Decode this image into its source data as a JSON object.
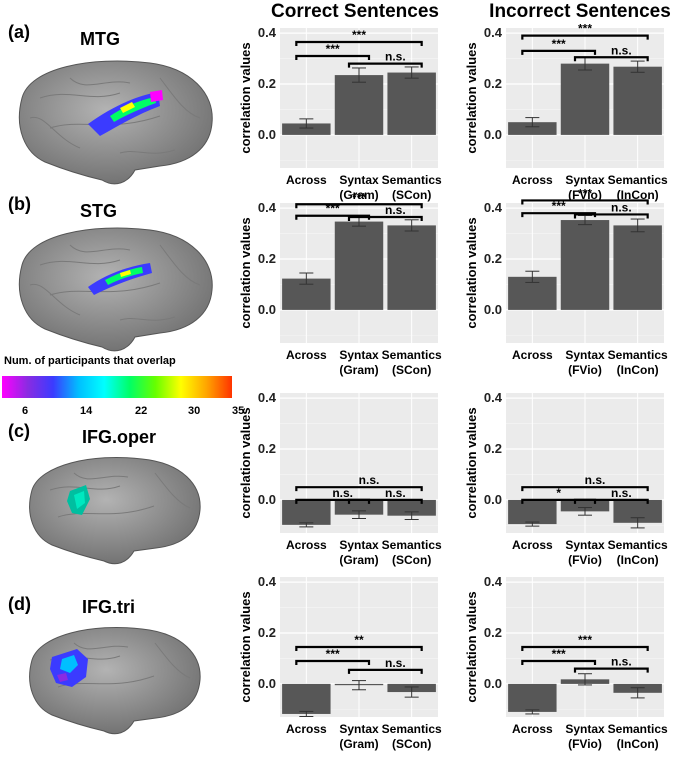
{
  "columns": [
    "Correct Sentences",
    "Incorrect Sentences"
  ],
  "colorbar": {
    "title": "Num. of participants that overlap",
    "ticks": [
      "6",
      "14",
      "22",
      "30",
      "35"
    ],
    "stops": [
      "#ff00ff",
      "#8a2be2",
      "#3b3bff",
      "#00bfff",
      "#00ffff",
      "#00ff66",
      "#66ff00",
      "#ffff00",
      "#ffa500",
      "#ff3300"
    ]
  },
  "rows": [
    {
      "letter": "(a)",
      "region": "MTG"
    },
    {
      "letter": "(b)",
      "region": "STG"
    },
    {
      "letter": "(c)",
      "region": "IFG.oper"
    },
    {
      "letter": "(d)",
      "region": "IFG.tri"
    }
  ],
  "chart_data": [
    {
      "type": "bar",
      "ylabel": "correlation values",
      "ylim": [
        -0.13,
        0.42
      ],
      "yticks": [
        "0.0",
        "0.2",
        "0.4"
      ],
      "categories": [
        [
          "Across",
          ""
        ],
        [
          "Syntax",
          "(Gram)"
        ],
        [
          "Semantics",
          "(SCon)"
        ]
      ],
      "values": [
        0.045,
        0.235,
        0.245
      ],
      "errors": [
        0.018,
        0.028,
        0.022
      ],
      "comparisons": [
        {
          "from": 0,
          "to": 1,
          "label": "***",
          "y": 0.31
        },
        {
          "from": 1,
          "to": 2,
          "label": "n.s.",
          "y": 0.28
        },
        {
          "from": 0,
          "to": 2,
          "label": "***",
          "y": 0.365
        }
      ]
    },
    {
      "type": "bar",
      "ylabel": "correlation values",
      "ylim": [
        -0.13,
        0.42
      ],
      "yticks": [
        "0.0",
        "0.2",
        "0.4"
      ],
      "categories": [
        [
          "Across",
          ""
        ],
        [
          "Syntax",
          "(FVio)"
        ],
        [
          "Semantics",
          "(InCon)"
        ]
      ],
      "values": [
        0.05,
        0.28,
        0.268
      ],
      "errors": [
        0.018,
        0.025,
        0.022
      ],
      "comparisons": [
        {
          "from": 0,
          "to": 1,
          "label": "***",
          "y": 0.33
        },
        {
          "from": 1,
          "to": 2,
          "label": "n.s.",
          "y": 0.305
        },
        {
          "from": 0,
          "to": 2,
          "label": "***",
          "y": 0.39
        }
      ]
    },
    {
      "type": "bar",
      "ylabel": "correlation values",
      "ylim": [
        -0.13,
        0.42
      ],
      "yticks": [
        "0.0",
        "0.2",
        "0.4"
      ],
      "categories": [
        [
          "Across",
          ""
        ],
        [
          "Syntax",
          "(Gram)"
        ],
        [
          "Semantics",
          "(SCon)"
        ]
      ],
      "values": [
        0.123,
        0.347,
        0.332
      ],
      "errors": [
        0.022,
        0.018,
        0.022
      ],
      "comparisons": [
        {
          "from": 0,
          "to": 1,
          "label": "***",
          "y": 0.37
        },
        {
          "from": 1,
          "to": 2,
          "label": "n.s.",
          "y": 0.365
        },
        {
          "from": 0,
          "to": 2,
          "label": "***",
          "y": 0.415
        }
      ]
    },
    {
      "type": "bar",
      "ylabel": "correlation values",
      "ylim": [
        -0.13,
        0.42
      ],
      "yticks": [
        "0.0",
        "0.2",
        "0.4"
      ],
      "categories": [
        [
          "Across",
          ""
        ],
        [
          "Syntax",
          "(FVio)"
        ],
        [
          "Semantics",
          "(InCon)"
        ]
      ],
      "values": [
        0.13,
        0.353,
        0.332
      ],
      "errors": [
        0.022,
        0.018,
        0.025
      ],
      "comparisons": [
        {
          "from": 0,
          "to": 1,
          "label": "***",
          "y": 0.38
        },
        {
          "from": 1,
          "to": 2,
          "label": "n.s.",
          "y": 0.375
        },
        {
          "from": 0,
          "to": 2,
          "label": "***",
          "y": 0.43
        }
      ]
    },
    {
      "type": "bar",
      "ylabel": "correlation values",
      "ylim": [
        -0.13,
        0.42
      ],
      "yticks": [
        "0.0",
        "0.2",
        "0.4"
      ],
      "categories": [
        [
          "Across",
          ""
        ],
        [
          "Syntax",
          "(Gram)"
        ],
        [
          "Semantics",
          "(SCon)"
        ]
      ],
      "values": [
        -0.098,
        -0.058,
        -0.062
      ],
      "errors": [
        0.008,
        0.015,
        0.015
      ],
      "comparisons": [
        {
          "from": 0,
          "to": 1,
          "label": "n.s.",
          "y": 0.0
        },
        {
          "from": 1,
          "to": 2,
          "label": "n.s.",
          "y": 0.0
        },
        {
          "from": 0,
          "to": 2,
          "label": "n.s.",
          "y": 0.05
        }
      ]
    },
    {
      "type": "bar",
      "ylabel": "correlation values",
      "ylim": [
        -0.13,
        0.42
      ],
      "yticks": [
        "0.0",
        "0.2",
        "0.4"
      ],
      "categories": [
        [
          "Across",
          ""
        ],
        [
          "Syntax",
          "(FVio)"
        ],
        [
          "Semantics",
          "(InCon)"
        ]
      ],
      "values": [
        -0.095,
        -0.045,
        -0.09
      ],
      "errors": [
        0.008,
        0.015,
        0.02
      ],
      "comparisons": [
        {
          "from": 0,
          "to": 1,
          "label": "*",
          "y": 0.0
        },
        {
          "from": 1,
          "to": 2,
          "label": "n.s.",
          "y": 0.0
        },
        {
          "from": 0,
          "to": 2,
          "label": "n.s.",
          "y": 0.05
        }
      ]
    },
    {
      "type": "bar",
      "ylabel": "correlation values",
      "ylim": [
        -0.13,
        0.42
      ],
      "yticks": [
        "0.0",
        "0.2",
        "0.4"
      ],
      "categories": [
        [
          "Across",
          ""
        ],
        [
          "Syntax",
          "(Gram)"
        ],
        [
          "Semantics",
          "(SCon)"
        ]
      ],
      "values": [
        -0.118,
        -0.005,
        -0.032
      ],
      "errors": [
        0.01,
        0.018,
        0.02
      ],
      "comparisons": [
        {
          "from": 0,
          "to": 1,
          "label": "***",
          "y": 0.09
        },
        {
          "from": 1,
          "to": 2,
          "label": "n.s.",
          "y": 0.055
        },
        {
          "from": 0,
          "to": 2,
          "label": "**",
          "y": 0.145
        }
      ]
    },
    {
      "type": "bar",
      "ylabel": "correlation values",
      "ylim": [
        -0.13,
        0.42
      ],
      "yticks": [
        "0.0",
        "0.2",
        "0.4"
      ],
      "categories": [
        [
          "Across",
          ""
        ],
        [
          "Syntax",
          "(FVio)"
        ],
        [
          "Semantics",
          "(InCon)"
        ]
      ],
      "values": [
        -0.11,
        0.018,
        -0.035
      ],
      "errors": [
        0.008,
        0.022,
        0.02
      ],
      "comparisons": [
        {
          "from": 0,
          "to": 1,
          "label": "***",
          "y": 0.09
        },
        {
          "from": 1,
          "to": 2,
          "label": "n.s.",
          "y": 0.06
        },
        {
          "from": 0,
          "to": 2,
          "label": "***",
          "y": 0.145
        }
      ]
    }
  ]
}
